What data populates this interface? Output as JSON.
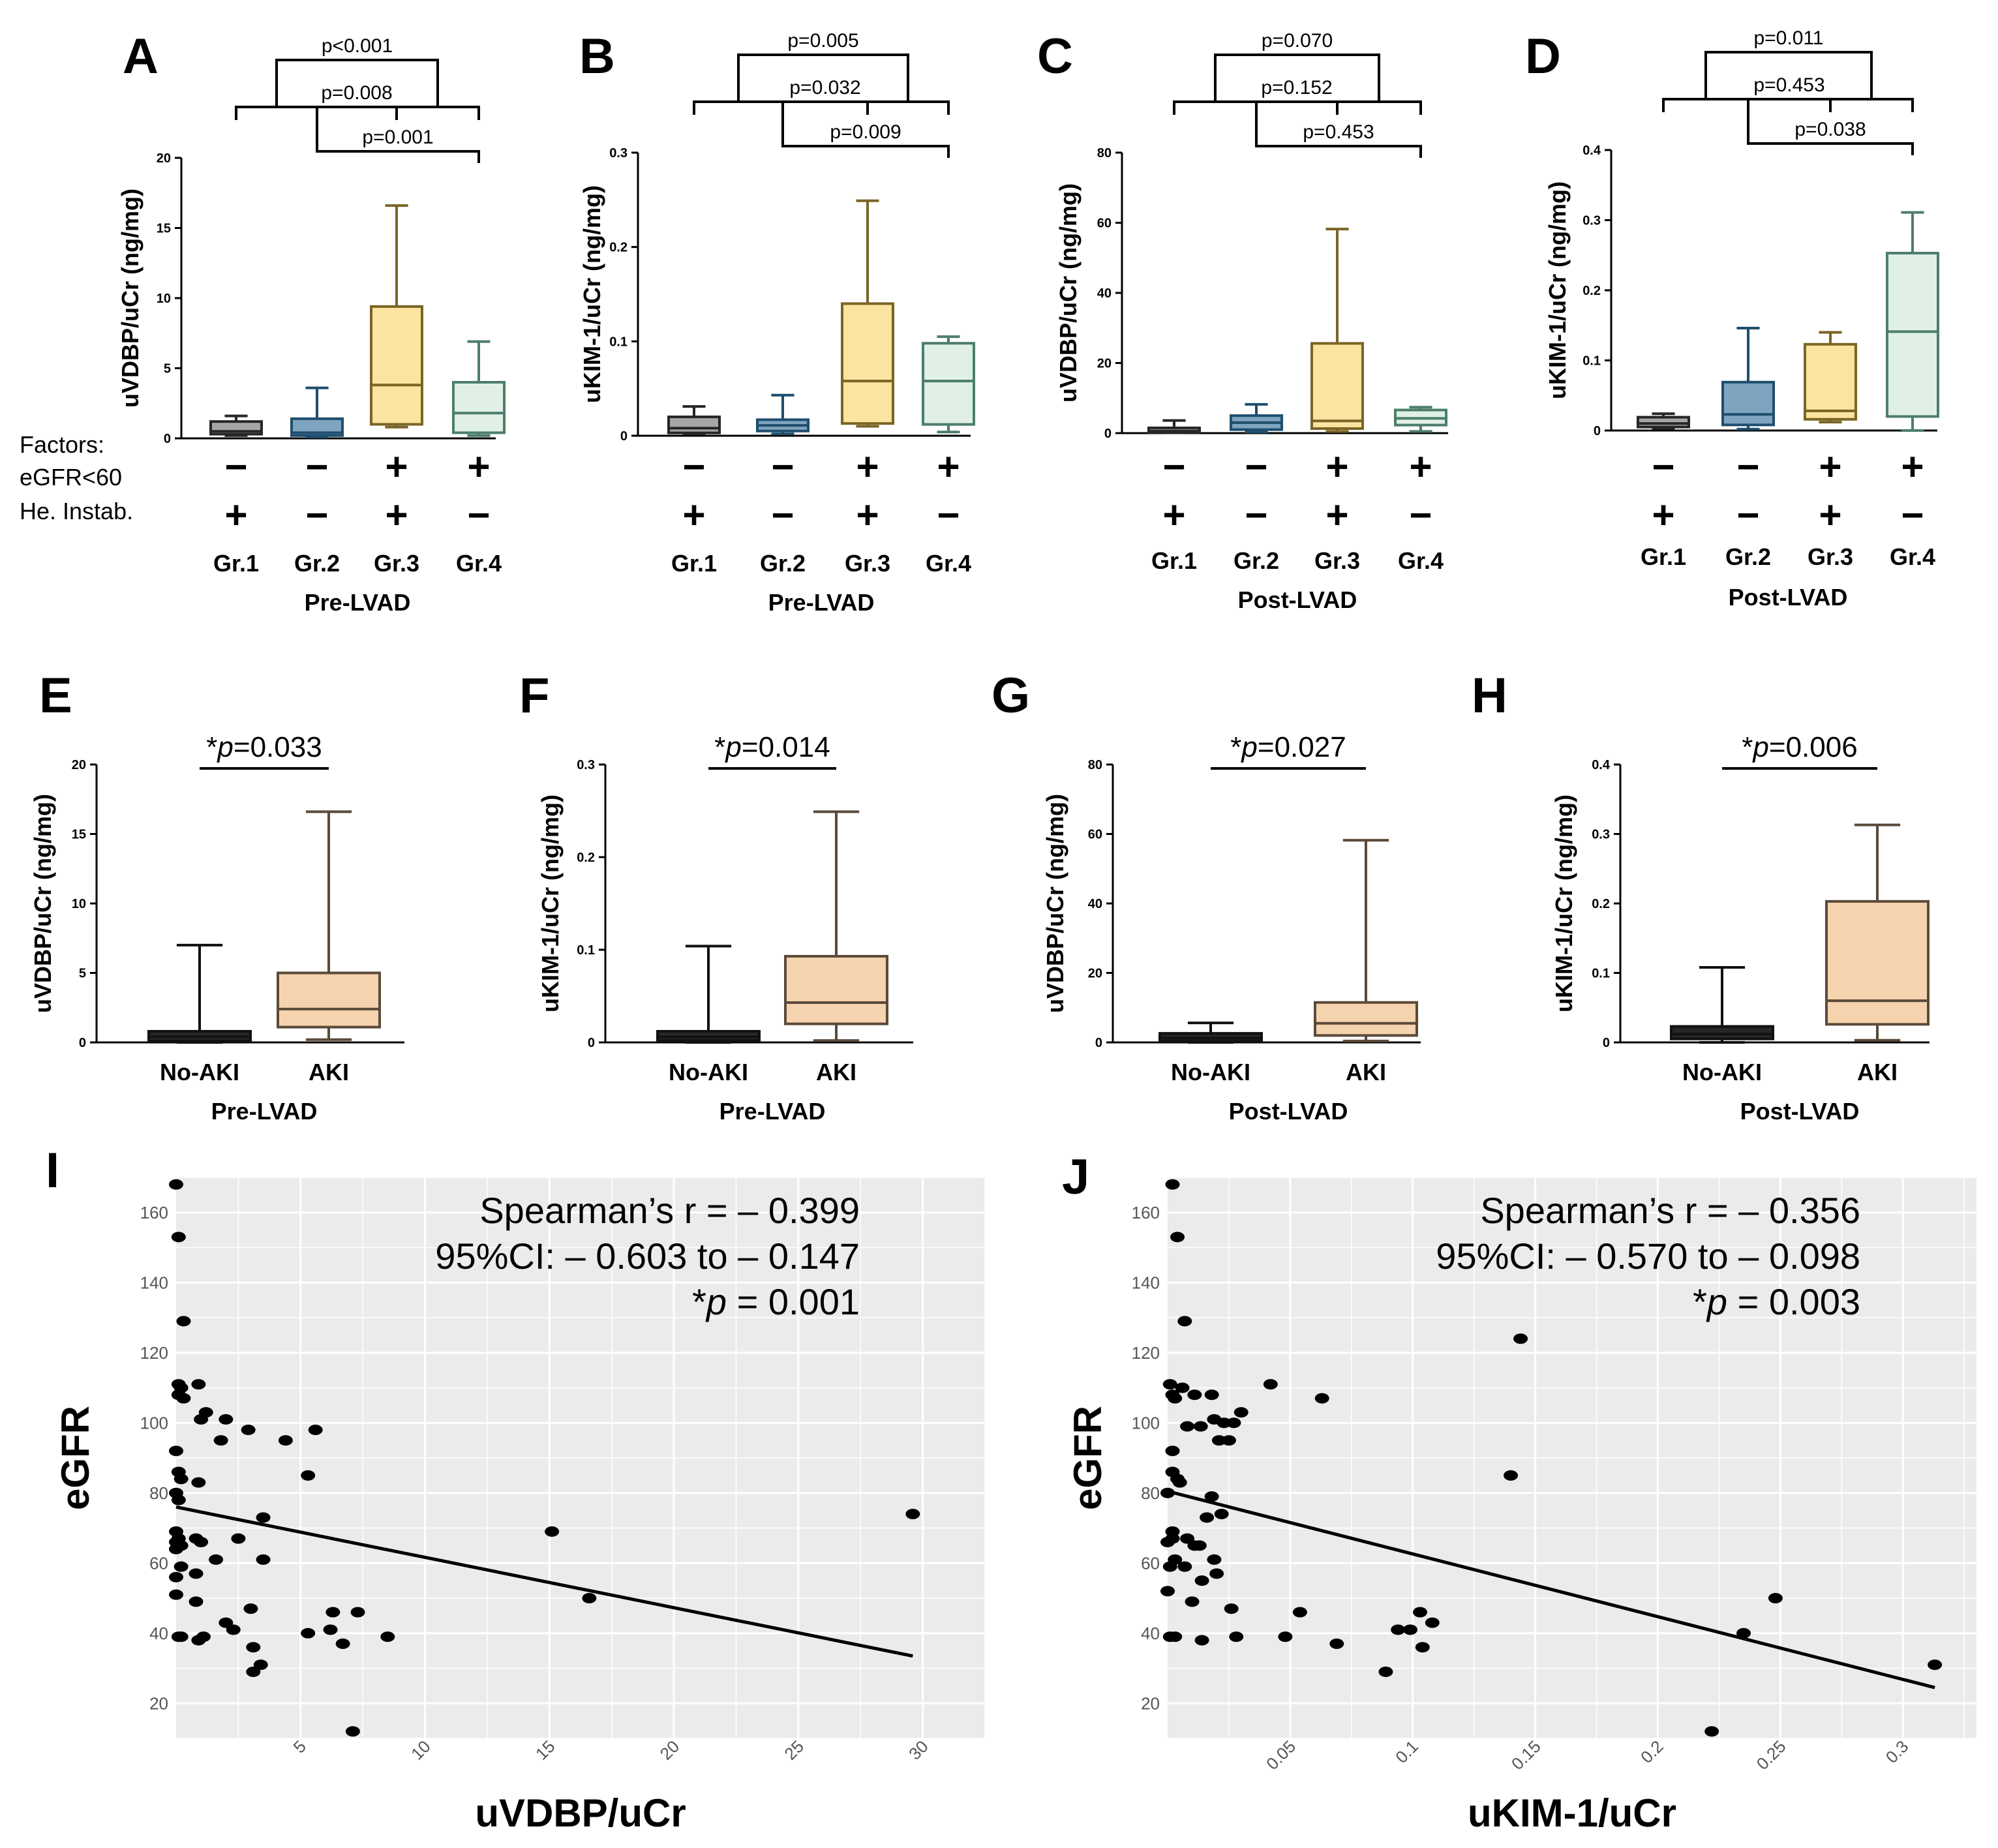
{
  "colors": {
    "gr1": "#a6a6a6",
    "gr2": "#7ea4bf",
    "gr3": "#fbe3a0",
    "gr4": "#e0f0e6",
    "gr1_line": "#262626",
    "gr2_line": "#1f4e6e",
    "gr3_line": "#7a6525",
    "gr4_line": "#4c7e6b",
    "noaki": "#262626",
    "aki": "#f5d3ae",
    "aki_line": "#5b4a3a",
    "scatter_bg": "#ebebeb",
    "grid": "#ffffff"
  },
  "factors": {
    "title": "Factors:",
    "rows": [
      "eGFR<60",
      "He. Instab."
    ],
    "egfr_signs": [
      "−",
      "−",
      "+",
      "+"
    ],
    "heinstab_signs": [
      "+",
      "−",
      "+",
      "−"
    ]
  },
  "groups": [
    "Gr.1",
    "Gr.2",
    "Gr.3",
    "Gr.4"
  ],
  "aki_groups": [
    "No-AKI",
    "AKI"
  ],
  "chart_data": [
    {
      "panel": "A",
      "type": "box",
      "ylabel": "uVDBP/uCr (ng/mg)",
      "xlabel": "Pre-LVAD",
      "ylim": [
        0,
        20
      ],
      "yticks": [
        0,
        5,
        10,
        15,
        20
      ],
      "boxes": [
        {
          "group": "Gr.1",
          "whisker_low": 0.2,
          "q1": 0.3,
          "median": 0.5,
          "q3": 1.2,
          "whisker_high": 1.6
        },
        {
          "group": "Gr.2",
          "whisker_low": 0.1,
          "q1": 0.2,
          "median": 0.4,
          "q3": 1.4,
          "whisker_high": 3.6
        },
        {
          "group": "Gr.3",
          "whisker_low": 0.8,
          "q1": 1.0,
          "median": 3.8,
          "q3": 9.4,
          "whisker_high": 16.6
        },
        {
          "group": "Gr.4",
          "whisker_low": 0.2,
          "q1": 0.4,
          "median": 1.8,
          "q3": 4.0,
          "whisker_high": 6.9
        }
      ],
      "comparisons": [
        {
          "label": "p<0.001",
          "level": 2
        },
        {
          "label": "p=0.008",
          "level": 1
        },
        {
          "label": "p=0.001",
          "level": 0
        }
      ]
    },
    {
      "panel": "B",
      "type": "box",
      "ylabel": "uKIM-1/uCr (ng/mg)",
      "xlabel": "Pre-LVAD",
      "ylim": [
        0,
        0.3
      ],
      "yticks": [
        0,
        0.1,
        0.2,
        0.3
      ],
      "boxes": [
        {
          "group": "Gr.1",
          "whisker_low": 0.002,
          "q1": 0.003,
          "median": 0.008,
          "q3": 0.02,
          "whisker_high": 0.031
        },
        {
          "group": "Gr.2",
          "whisker_low": 0.002,
          "q1": 0.005,
          "median": 0.011,
          "q3": 0.017,
          "whisker_high": 0.043
        },
        {
          "group": "Gr.3",
          "whisker_low": 0.01,
          "q1": 0.013,
          "median": 0.058,
          "q3": 0.14,
          "whisker_high": 0.249
        },
        {
          "group": "Gr.4",
          "whisker_low": 0.004,
          "q1": 0.012,
          "median": 0.058,
          "q3": 0.098,
          "whisker_high": 0.105
        }
      ],
      "comparisons": [
        {
          "label": "p=0.005",
          "level": 2
        },
        {
          "label": "p=0.032",
          "level": 1
        },
        {
          "label": "p=0.009",
          "level": 0
        }
      ]
    },
    {
      "panel": "C",
      "type": "box",
      "ylabel": "uVDBP/uCr (ng/mg)",
      "xlabel": "Post-LVAD",
      "ylim": [
        0,
        80
      ],
      "yticks": [
        0,
        20,
        40,
        60,
        80
      ],
      "boxes": [
        {
          "group": "Gr.1",
          "whisker_low": 0.1,
          "q1": 0.2,
          "median": 0.6,
          "q3": 1.5,
          "whisker_high": 3.6
        },
        {
          "group": "Gr.2",
          "whisker_low": 0.3,
          "q1": 1.0,
          "median": 3.0,
          "q3": 5.0,
          "whisker_high": 8.2
        },
        {
          "group": "Gr.3",
          "whisker_low": 0.5,
          "q1": 1.3,
          "median": 3.5,
          "q3": 25.6,
          "whisker_high": 58.2
        },
        {
          "group": "Gr.4",
          "whisker_low": 0.5,
          "q1": 2.3,
          "median": 4.2,
          "q3": 6.6,
          "whisker_high": 7.4
        }
      ],
      "comparisons": [
        {
          "label": "p=0.070",
          "level": 2
        },
        {
          "label": "p=0.152",
          "level": 1
        },
        {
          "label": "p=0.453",
          "level": 0
        }
      ]
    },
    {
      "panel": "D",
      "type": "box",
      "ylabel": "uKIM-1/uCr (ng/mg)",
      "xlabel": "Post-LVAD",
      "ylim": [
        0,
        0.4
      ],
      "yticks": [
        0,
        0.1,
        0.2,
        0.3,
        0.4
      ],
      "boxes": [
        {
          "group": "Gr.1",
          "whisker_low": 0.003,
          "q1": 0.005,
          "median": 0.01,
          "q3": 0.019,
          "whisker_high": 0.024
        },
        {
          "group": "Gr.2",
          "whisker_low": 0.002,
          "q1": 0.008,
          "median": 0.023,
          "q3": 0.069,
          "whisker_high": 0.146
        },
        {
          "group": "Gr.3",
          "whisker_low": 0.012,
          "q1": 0.016,
          "median": 0.028,
          "q3": 0.123,
          "whisker_high": 0.14
        },
        {
          "group": "Gr.4",
          "whisker_low": 0.0,
          "q1": 0.02,
          "median": 0.141,
          "q3": 0.253,
          "whisker_high": 0.311
        }
      ],
      "comparisons": [
        {
          "label": "p=0.011",
          "level": 2
        },
        {
          "label": "p=0.453",
          "level": 1
        },
        {
          "label": "p=0.038",
          "level": 0
        }
      ]
    },
    {
      "panel": "E",
      "type": "box",
      "ylabel": "uVDBP/uCr (ng/mg)",
      "xlabel": "Pre-LVAD",
      "ylim": [
        0,
        20
      ],
      "yticks": [
        0,
        5,
        10,
        15,
        20
      ],
      "boxes": [
        {
          "group": "No-AKI",
          "whisker_low": 0.0,
          "q1": 0.1,
          "median": 0.4,
          "q3": 0.8,
          "whisker_high": 7.0
        },
        {
          "group": "AKI",
          "whisker_low": 0.2,
          "q1": 1.1,
          "median": 2.4,
          "q3": 5.0,
          "whisker_high": 16.6
        }
      ],
      "comparisons": [
        {
          "label_prefix": "*",
          "label_p": "p",
          "label_value": "=0.033"
        }
      ]
    },
    {
      "panel": "F",
      "type": "box",
      "ylabel": "uKIM-1/uCr (ng/mg)",
      "xlabel": "Pre-LVAD",
      "ylim": [
        0,
        0.3
      ],
      "yticks": [
        0,
        0.1,
        0.2,
        0.3
      ],
      "boxes": [
        {
          "group": "No-AKI",
          "whisker_low": 0.0,
          "q1": 0.002,
          "median": 0.006,
          "q3": 0.012,
          "whisker_high": 0.104
        },
        {
          "group": "AKI",
          "whisker_low": 0.002,
          "q1": 0.02,
          "median": 0.043,
          "q3": 0.093,
          "whisker_high": 0.249
        }
      ],
      "comparisons": [
        {
          "label_prefix": "*",
          "label_p": "p",
          "label_value": "=0.014"
        }
      ]
    },
    {
      "panel": "G",
      "type": "box",
      "ylabel": "uVDBP/uCr (ng/mg)",
      "xlabel": "Post-LVAD",
      "ylim": [
        0,
        80
      ],
      "yticks": [
        0,
        20,
        40,
        60,
        80
      ],
      "boxes": [
        {
          "group": "No-AKI",
          "whisker_low": 0.0,
          "q1": 0.3,
          "median": 1.2,
          "q3": 2.6,
          "whisker_high": 5.6
        },
        {
          "group": "AKI",
          "whisker_low": 0.4,
          "q1": 2.0,
          "median": 5.5,
          "q3": 11.5,
          "whisker_high": 58.2
        }
      ],
      "comparisons": [
        {
          "label_prefix": "*",
          "label_p": "p",
          "label_value": "=0.027"
        }
      ]
    },
    {
      "panel": "H",
      "type": "box",
      "ylabel": "uKIM-1/uCr (ng/mg)",
      "xlabel": "Post-LVAD",
      "ylim": [
        0,
        0.4
      ],
      "yticks": [
        0,
        0.1,
        0.2,
        0.3,
        0.4
      ],
      "boxes": [
        {
          "group": "No-AKI",
          "whisker_low": 0.0,
          "q1": 0.005,
          "median": 0.012,
          "q3": 0.023,
          "whisker_high": 0.108
        },
        {
          "group": "AKI",
          "whisker_low": 0.003,
          "q1": 0.026,
          "median": 0.06,
          "q3": 0.203,
          "whisker_high": 0.313
        }
      ],
      "comparisons": [
        {
          "label_prefix": "*",
          "label_p": "p",
          "label_value": "=0.006"
        }
      ]
    },
    {
      "panel": "I",
      "type": "scatter",
      "xlabel": "uVDBP/uCr",
      "ylabel": "eGFR",
      "xlim": [
        0,
        32.5
      ],
      "ylim": [
        10,
        170
      ],
      "xticks": [
        5,
        10,
        15,
        20,
        25,
        30
      ],
      "yticks": [
        20,
        40,
        60,
        80,
        100,
        120,
        140,
        160
      ],
      "stats": {
        "line1": "Spearman’s r = – 0.399",
        "line2": "95%CI: – 0.603 to – 0.147",
        "line3_prefix": "*",
        "line3_p": "p",
        "line3_value": " = 0.001"
      },
      "fit": {
        "x": [
          0,
          29.6
        ],
        "y": [
          76,
          33.5
        ]
      },
      "points": [
        [
          0.0,
          168
        ],
        [
          0.1,
          153
        ],
        [
          0.3,
          129
        ],
        [
          0.1,
          111
        ],
        [
          0.1,
          108
        ],
        [
          0.2,
          110
        ],
        [
          0.3,
          107
        ],
        [
          0.9,
          111
        ],
        [
          1.2,
          103
        ],
        [
          1.0,
          101
        ],
        [
          1.8,
          95
        ],
        [
          2.0,
          101
        ],
        [
          2.9,
          98
        ],
        [
          4.4,
          95
        ],
        [
          5.6,
          98
        ],
        [
          0.0,
          92
        ],
        [
          0.1,
          86
        ],
        [
          0.2,
          84
        ],
        [
          0.9,
          83
        ],
        [
          5.3,
          85
        ],
        [
          0.0,
          80
        ],
        [
          0.1,
          78
        ],
        [
          0.0,
          69
        ],
        [
          0.1,
          67
        ],
        [
          0.0,
          66
        ],
        [
          0.2,
          65
        ],
        [
          0.0,
          64
        ],
        [
          0.8,
          67
        ],
        [
          1.0,
          66
        ],
        [
          2.5,
          67
        ],
        [
          3.5,
          73
        ],
        [
          1.6,
          61
        ],
        [
          3.5,
          61
        ],
        [
          0.2,
          59
        ],
        [
          0.0,
          56
        ],
        [
          0.8,
          57
        ],
        [
          0.0,
          51
        ],
        [
          0.8,
          49
        ],
        [
          3.0,
          47
        ],
        [
          6.3,
          46
        ],
        [
          7.3,
          46
        ],
        [
          2.0,
          43
        ],
        [
          2.3,
          41
        ],
        [
          0.2,
          39
        ],
        [
          0.1,
          39
        ],
        [
          0.9,
          38
        ],
        [
          1.1,
          39
        ],
        [
          5.3,
          40
        ],
        [
          6.2,
          41
        ],
        [
          8.5,
          39
        ],
        [
          6.7,
          37
        ],
        [
          3.1,
          36
        ],
        [
          3.4,
          31
        ],
        [
          3.1,
          29
        ],
        [
          15.1,
          69
        ],
        [
          16.6,
          50
        ],
        [
          29.6,
          74
        ],
        [
          7.1,
          12
        ]
      ]
    },
    {
      "panel": "J",
      "type": "scatter",
      "xlabel": "uKIM-1/uCr",
      "ylabel": "eGFR",
      "xlim": [
        0,
        0.33
      ],
      "ylim": [
        10,
        170
      ],
      "xticks": [
        0.05,
        0.1,
        0.15,
        0.2,
        0.25,
        0.3
      ],
      "xtick_labels": [
        "0.05",
        "0.1",
        "0.15",
        "0.2",
        "0.25",
        "0.3"
      ],
      "yticks": [
        20,
        40,
        60,
        80,
        100,
        120,
        140,
        160
      ],
      "stats": {
        "line1": "Spearman’s r = – 0.356",
        "line2": "95%CI: – 0.570 to – 0.098",
        "line3_prefix": "*",
        "line3_p": "p",
        "line3_value": " = 0.003"
      },
      "fit": {
        "x": [
          0,
          0.313
        ],
        "y": [
          80.5,
          24.5
        ]
      },
      "points": [
        [
          0.002,
          168
        ],
        [
          0.004,
          153
        ],
        [
          0.007,
          129
        ],
        [
          0.001,
          111
        ],
        [
          0.002,
          108
        ],
        [
          0.006,
          110
        ],
        [
          0.003,
          107
        ],
        [
          0.011,
          108
        ],
        [
          0.0135,
          99
        ],
        [
          0.008,
          99
        ],
        [
          0.018,
          108
        ],
        [
          0.019,
          101
        ],
        [
          0.023,
          100
        ],
        [
          0.021,
          95
        ],
        [
          0.025,
          95
        ],
        [
          0.027,
          100
        ],
        [
          0.03,
          103
        ],
        [
          0.042,
          111
        ],
        [
          0.063,
          107
        ],
        [
          0.144,
          124
        ],
        [
          0.002,
          92
        ],
        [
          0.002,
          86
        ],
        [
          0.004,
          84
        ],
        [
          0.005,
          83
        ],
        [
          0.0,
          80
        ],
        [
          0.018,
          79
        ],
        [
          0.002,
          69
        ],
        [
          0.002,
          67
        ],
        [
          0.0,
          66
        ],
        [
          0.008,
          67
        ],
        [
          0.011,
          65
        ],
        [
          0.013,
          65
        ],
        [
          0.016,
          73
        ],
        [
          0.022,
          74
        ],
        [
          0.019,
          61
        ],
        [
          0.003,
          61
        ],
        [
          0.001,
          59
        ],
        [
          0.007,
          59
        ],
        [
          0.02,
          57
        ],
        [
          0.0,
          52
        ],
        [
          0.014,
          55
        ],
        [
          0.01,
          49
        ],
        [
          0.026,
          47
        ],
        [
          0.054,
          46
        ],
        [
          0.103,
          46
        ],
        [
          0.099,
          41
        ],
        [
          0.094,
          41
        ],
        [
          0.108,
          43
        ],
        [
          0.001,
          39
        ],
        [
          0.003,
          39
        ],
        [
          0.014,
          38
        ],
        [
          0.028,
          39
        ],
        [
          0.048,
          39
        ],
        [
          0.069,
          37
        ],
        [
          0.104,
          36
        ],
        [
          0.089,
          29
        ],
        [
          0.14,
          85
        ],
        [
          0.248,
          50
        ],
        [
          0.235,
          40
        ],
        [
          0.313,
          31
        ],
        [
          0.222,
          12
        ]
      ]
    }
  ]
}
